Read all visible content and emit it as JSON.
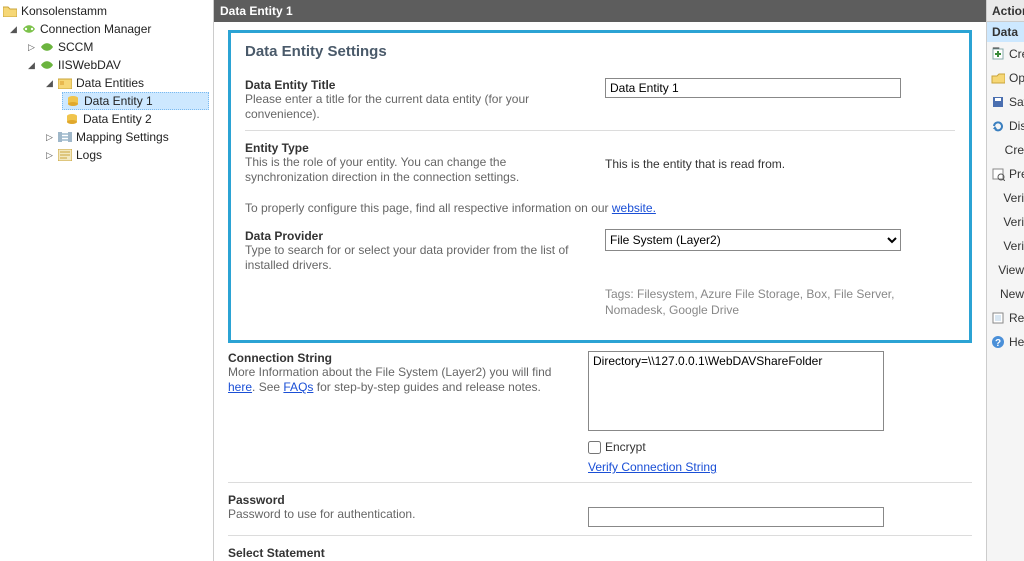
{
  "tree": {
    "root": "Konsolenstamm",
    "connManager": "Connection Manager",
    "sccm": "SCCM",
    "iiswebdav": "IISWebDAV",
    "dataEntities": "Data Entities",
    "de1": "Data Entity 1",
    "de2": "Data Entity 2",
    "mapping": "Mapping Settings",
    "logs": "Logs"
  },
  "header": {
    "title": "Data Entity 1"
  },
  "settings": {
    "sectionTitle": "Data Entity Settings",
    "titleLabel": "Data Entity Title",
    "titleDesc": "Please enter a title for the current data entity (for your convenience).",
    "titleValue": "Data Entity 1",
    "entityTypeLabel": "Entity Type",
    "entityTypeDesc": "This is the role of your entity. You can change the synchronization direction in the connection settings.",
    "entityTypeValue": "This is the entity that is read from.",
    "configNote1": "To properly configure this page, find all respective information on our ",
    "websiteLink": "website.",
    "providerLabel": "Data Provider",
    "providerDesc": "Type to search for or select your data provider from the list of installed drivers.",
    "providerValue": "File System (Layer2)",
    "tags": "Tags: Filesystem, Azure File Storage, Box, File Server, Nomadesk, Google Drive",
    "connLabel": "Connection String",
    "connDesc1": "More Information about the File System (Layer2) you will find ",
    "connHere": "here",
    "connDesc2": ". See ",
    "faqs": "FAQs",
    "connDesc3": " for step-by-step guides and release notes.",
    "connValue": "Directory=\\\\127.0.0.1\\WebDAVShareFolder",
    "encrypt": "Encrypt",
    "verify": "Verify Connection String",
    "passwordLabel": "Password",
    "passwordDesc": "Password to use for authentication.",
    "selectLabel": "Select Statement"
  },
  "actions": {
    "header": "Actions",
    "sub": "Data E",
    "items": [
      "Cre",
      "Ope",
      "Sav",
      "Disc",
      "Cre",
      "Pre",
      "Veri",
      "Veri",
      "Veri",
      "View",
      "New",
      "Ren",
      "Hel"
    ]
  },
  "colors": {
    "highlight": "#2ba3d4",
    "headerBg": "#5d5d5d",
    "selBg": "#cde8ff"
  }
}
